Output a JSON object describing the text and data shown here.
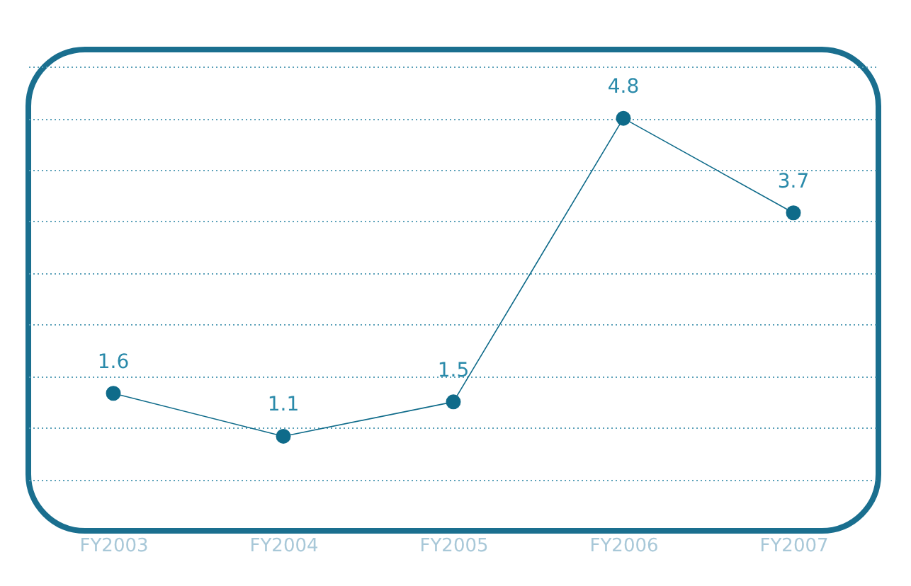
{
  "chart_data": {
    "type": "line",
    "categories": [
      "FY2003",
      "FY2004",
      "FY2005",
      "FY2006",
      "FY2007"
    ],
    "series": [
      {
        "color": "#0f6b8a",
        "values": [
          1.6,
          1.1,
          1.5,
          4.8,
          3.7
        ]
      }
    ],
    "ylim": [
      0,
      5.6
    ],
    "yticks": [
      {
        "value": 0.6,
        "label": null
      },
      {
        "value": 1.2,
        "label": null
      },
      {
        "value": 1.8,
        "label": null
      },
      {
        "value": 2.4,
        "label": null
      },
      {
        "value": 3.0,
        "label": null
      },
      {
        "value": 3.6,
        "label": null
      },
      {
        "value": 4.2,
        "label": null
      },
      {
        "value": 4.8,
        "label": null
      },
      {
        "value": 5.4,
        "label": null
      }
    ],
    "tick_labels": "x",
    "grid": "y",
    "marker": "circle",
    "line_style": "solid",
    "data_labels": true
  }
}
